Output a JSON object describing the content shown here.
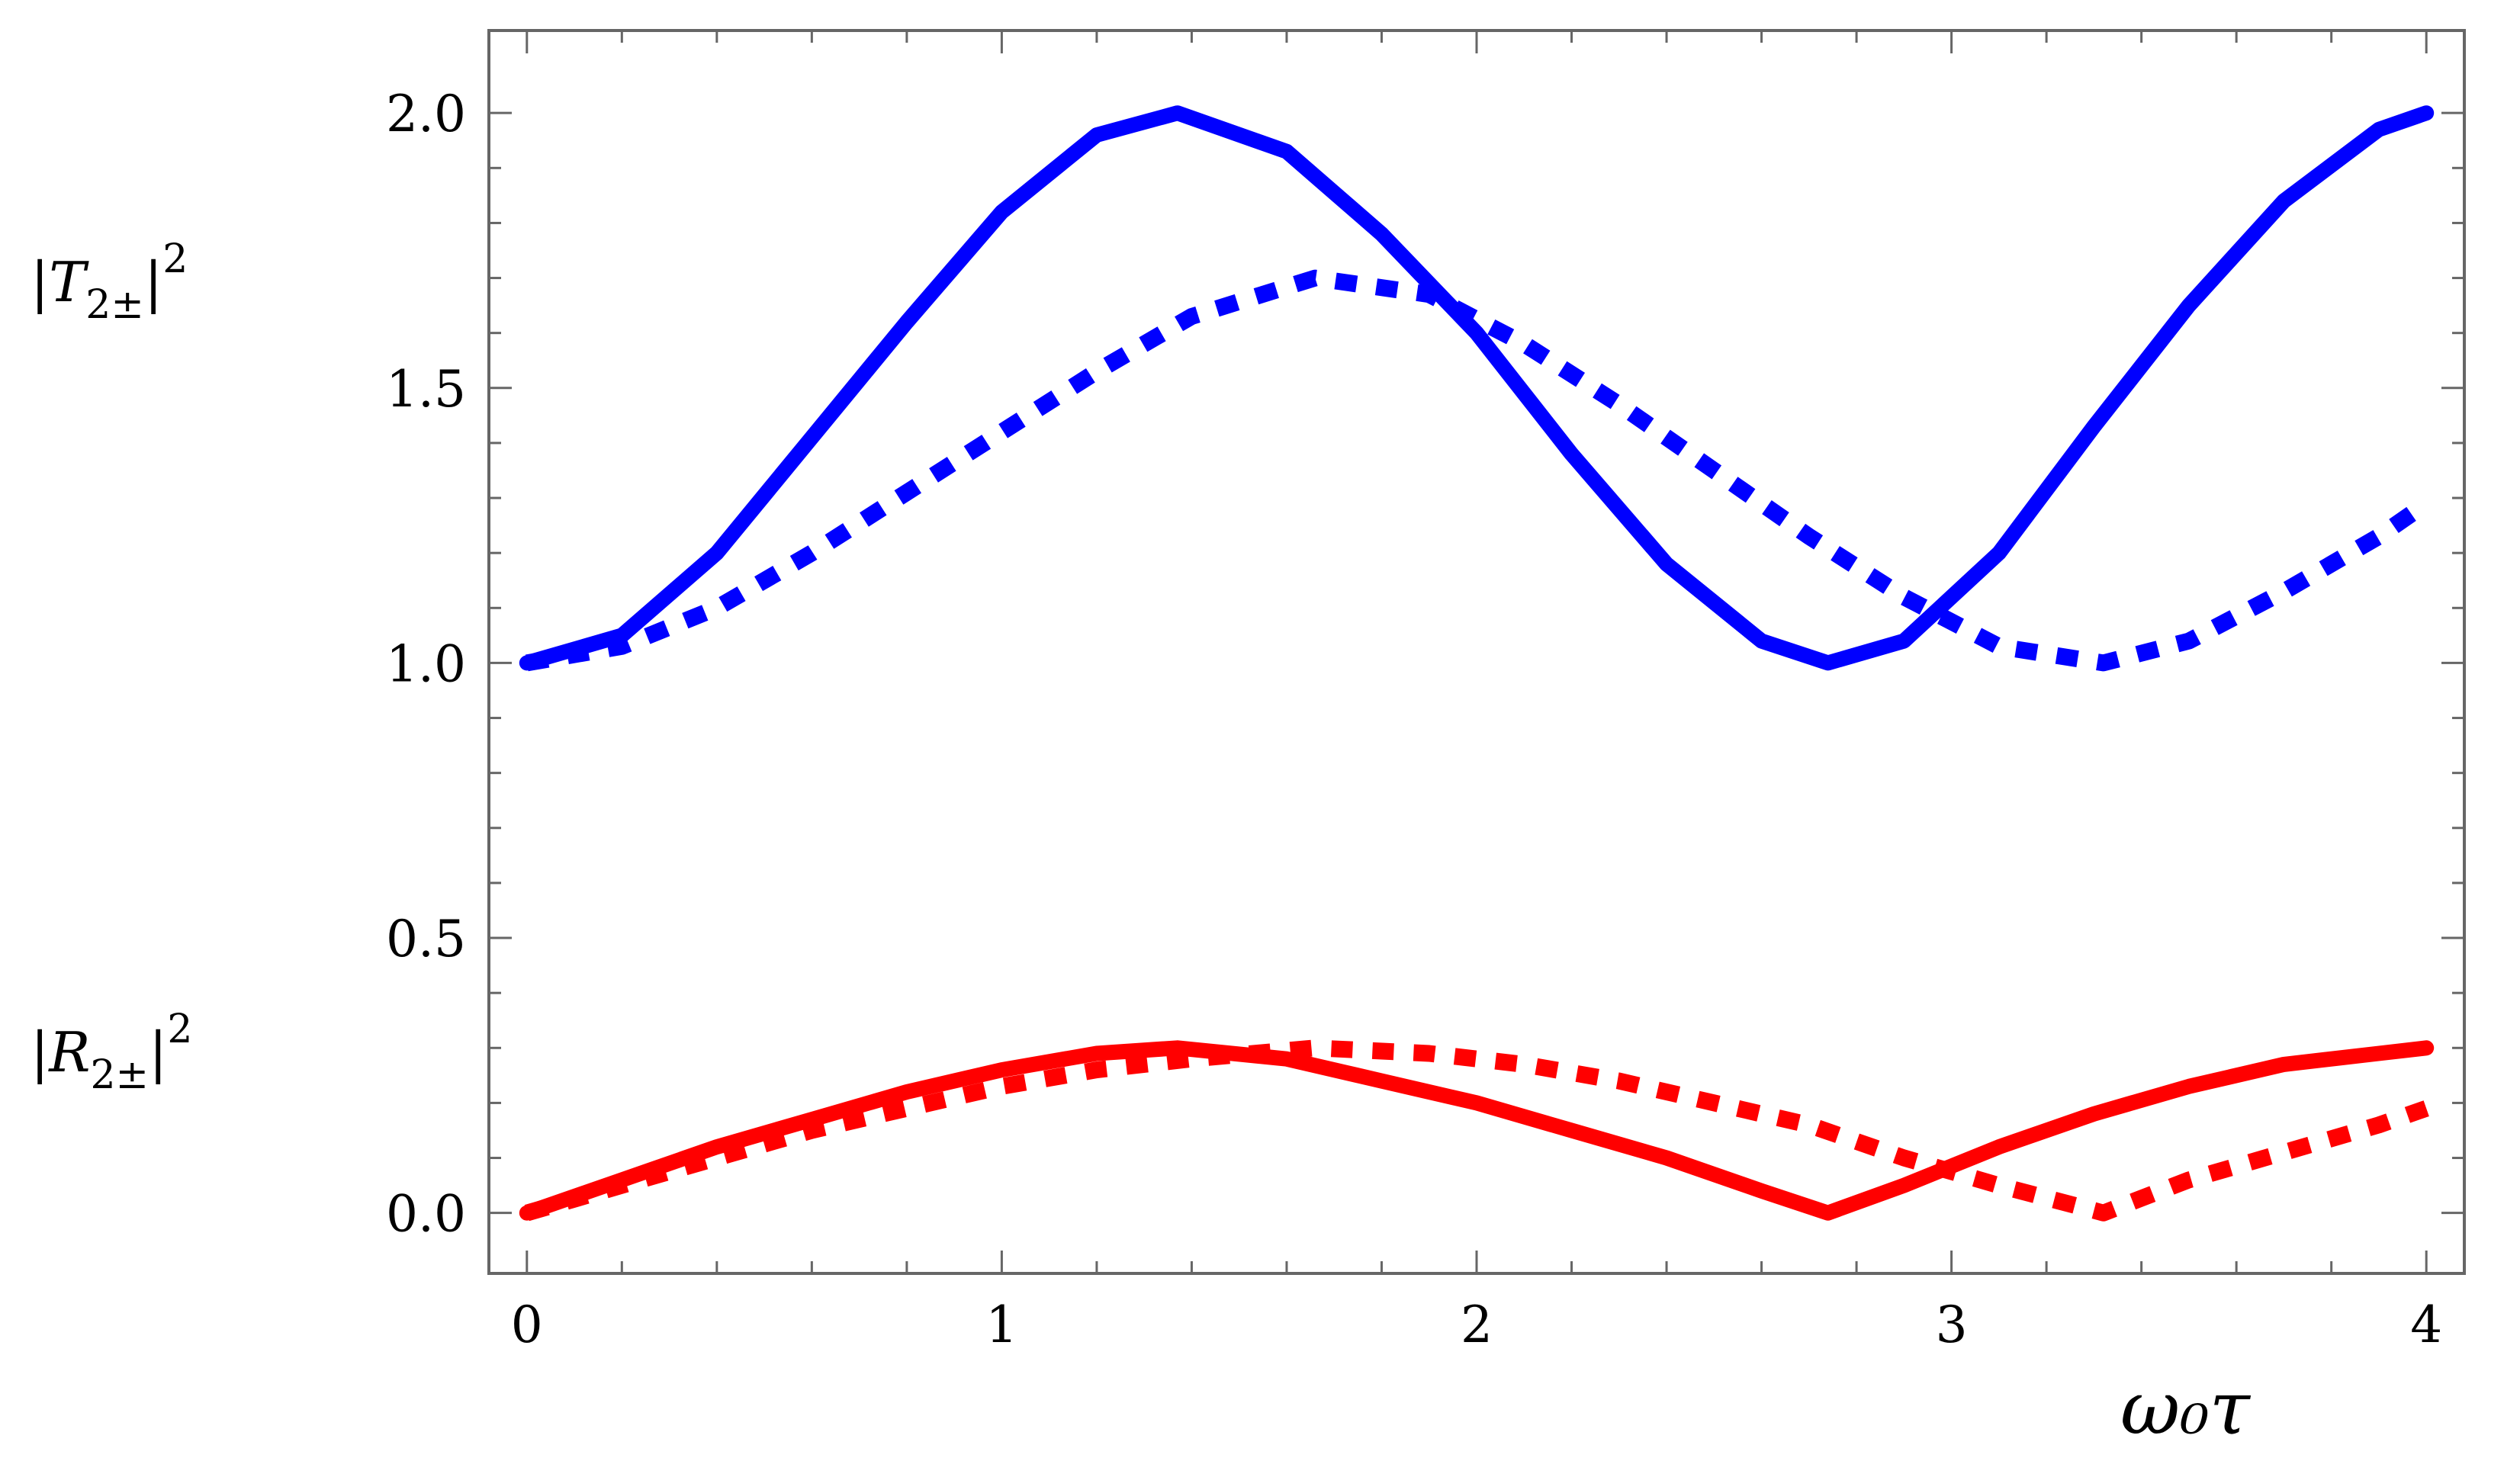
{
  "chart_data": {
    "type": "line",
    "xlabel": "ω₀τ",
    "xlim": [
      -0.08,
      4.08
    ],
    "ylim": [
      -0.11,
      2.15
    ],
    "x_ticks": [
      {
        "value": 0,
        "label": "0"
      },
      {
        "value": 1,
        "label": "1"
      },
      {
        "value": 2,
        "label": "2"
      },
      {
        "value": 3,
        "label": "3"
      },
      {
        "value": 4,
        "label": "4"
      }
    ],
    "y_ticks": [
      {
        "value": 0.0,
        "label": "0.0"
      },
      {
        "value": 0.5,
        "label": "0.5"
      },
      {
        "value": 1.0,
        "label": "1.0"
      },
      {
        "value": 1.5,
        "label": "1.5"
      },
      {
        "value": 2.0,
        "label": "2.0"
      }
    ],
    "series_labels": {
      "T": {
        "base": "|T",
        "sub": "2±",
        "close": "|",
        "sup": "2"
      },
      "R": {
        "base": "|R",
        "sub": "2±",
        "close": "|",
        "sup": "2"
      }
    },
    "series": [
      {
        "color": "#0000ff",
        "dash": "solid",
        "x": [
          0,
          0.2,
          0.4,
          0.6,
          0.8,
          1.0,
          1.2,
          1.37,
          1.6,
          1.8,
          2.0,
          2.2,
          2.4,
          2.6,
          2.74,
          2.9,
          3.1,
          3.3,
          3.5,
          3.7,
          3.9,
          4.0
        ],
        "y": [
          1.0,
          1.05,
          1.2,
          1.41,
          1.62,
          1.82,
          1.96,
          2.0,
          1.93,
          1.78,
          1.6,
          1.38,
          1.18,
          1.04,
          1.0,
          1.04,
          1.2,
          1.43,
          1.65,
          1.84,
          1.97,
          2.0
        ]
      },
      {
        "color": "#0000ff",
        "dash": "dotted",
        "x": [
          0,
          0.2,
          0.4,
          0.6,
          0.8,
          1.0,
          1.2,
          1.4,
          1.66,
          1.9,
          2.1,
          2.3,
          2.5,
          2.7,
          2.9,
          3.1,
          3.32,
          3.5,
          3.7,
          3.9,
          4.0
        ],
        "y": [
          1.0,
          1.03,
          1.1,
          1.2,
          1.31,
          1.42,
          1.53,
          1.63,
          1.7,
          1.67,
          1.58,
          1.47,
          1.35,
          1.23,
          1.12,
          1.03,
          1.0,
          1.04,
          1.13,
          1.23,
          1.29
        ]
      },
      {
        "color": "#ff0000",
        "dash": "solid",
        "x": [
          0,
          0.2,
          0.4,
          0.6,
          0.8,
          1.0,
          1.2,
          1.37,
          1.6,
          1.8,
          2.0,
          2.2,
          2.4,
          2.6,
          2.74,
          2.9,
          3.1,
          3.3,
          3.5,
          3.7,
          3.9,
          4.0
        ],
        "y": [
          0.0,
          0.06,
          0.12,
          0.17,
          0.22,
          0.26,
          0.29,
          0.3,
          0.28,
          0.24,
          0.2,
          0.15,
          0.1,
          0.04,
          0.0,
          0.05,
          0.12,
          0.18,
          0.23,
          0.27,
          0.29,
          0.3
        ]
      },
      {
        "color": "#ff0000",
        "dash": "dotted",
        "x": [
          0,
          0.2,
          0.4,
          0.6,
          0.8,
          1.0,
          1.2,
          1.4,
          1.66,
          1.9,
          2.1,
          2.3,
          2.5,
          2.7,
          2.9,
          3.1,
          3.32,
          3.5,
          3.7,
          3.9,
          4.0
        ],
        "y": [
          0.0,
          0.05,
          0.1,
          0.15,
          0.19,
          0.23,
          0.26,
          0.28,
          0.3,
          0.29,
          0.27,
          0.24,
          0.2,
          0.16,
          0.1,
          0.05,
          0.0,
          0.06,
          0.11,
          0.16,
          0.19
        ]
      }
    ]
  }
}
